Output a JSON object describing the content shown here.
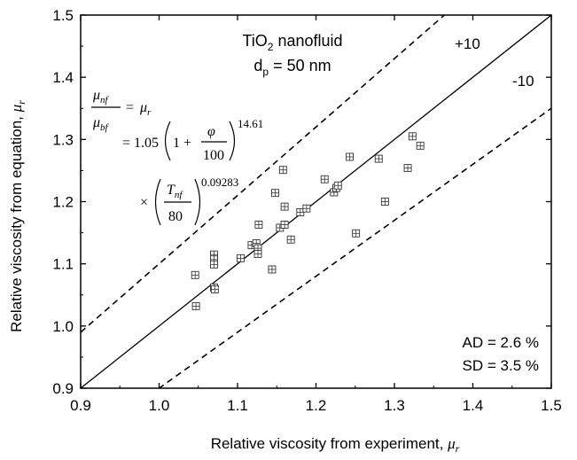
{
  "chart_data": {
    "type": "scatter",
    "xlabel": "Relative viscosity from experiment, ",
    "xlabel_symbol": "μ",
    "xlabel_symbol_sub": "r",
    "ylabel": "Relative viscosity from equation, ",
    "ylabel_symbol": "μ",
    "ylabel_symbol_sub": "r",
    "xlim": [
      0.9,
      1.5
    ],
    "ylim": [
      0.9,
      1.5
    ],
    "xticks": [
      "0.9",
      "1.0",
      "1.1",
      "1.2",
      "1.3",
      "1.4",
      "1.5"
    ],
    "yticks": [
      "0.9",
      "1.0",
      "1.1",
      "1.2",
      "1.3",
      "1.4",
      "1.5"
    ],
    "grid": false,
    "marker": "square-with-cross",
    "points": [
      {
        "x": 1.046,
        "y": 1.082
      },
      {
        "x": 1.047,
        "y": 1.032
      },
      {
        "x": 1.07,
        "y": 1.115
      },
      {
        "x": 1.07,
        "y": 1.107
      },
      {
        "x": 1.07,
        "y": 1.099
      },
      {
        "x": 1.07,
        "y": 1.062
      },
      {
        "x": 1.071,
        "y": 1.059
      },
      {
        "x": 1.104,
        "y": 1.109
      },
      {
        "x": 1.118,
        "y": 1.13
      },
      {
        "x": 1.124,
        "y": 1.133
      },
      {
        "x": 1.126,
        "y": 1.125
      },
      {
        "x": 1.126,
        "y": 1.116
      },
      {
        "x": 1.127,
        "y": 1.163
      },
      {
        "x": 1.144,
        "y": 1.091
      },
      {
        "x": 1.148,
        "y": 1.214
      },
      {
        "x": 1.154,
        "y": 1.158
      },
      {
        "x": 1.158,
        "y": 1.251
      },
      {
        "x": 1.16,
        "y": 1.192
      },
      {
        "x": 1.16,
        "y": 1.163
      },
      {
        "x": 1.168,
        "y": 1.139
      },
      {
        "x": 1.18,
        "y": 1.183
      },
      {
        "x": 1.188,
        "y": 1.189
      },
      {
        "x": 1.211,
        "y": 1.236
      },
      {
        "x": 1.223,
        "y": 1.215
      },
      {
        "x": 1.226,
        "y": 1.222
      },
      {
        "x": 1.228,
        "y": 1.226
      },
      {
        "x": 1.243,
        "y": 1.272
      },
      {
        "x": 1.251,
        "y": 1.149
      },
      {
        "x": 1.28,
        "y": 1.269
      },
      {
        "x": 1.288,
        "y": 1.2
      },
      {
        "x": 1.317,
        "y": 1.254
      },
      {
        "x": 1.323,
        "y": 1.305
      },
      {
        "x": 1.333,
        "y": 1.29
      }
    ],
    "reference_lines": [
      {
        "label": "",
        "slope": 1.0,
        "style": "solid"
      },
      {
        "label": "+10",
        "slope": 1.1,
        "style": "dashed"
      },
      {
        "label": "-10",
        "slope": 0.9,
        "style": "dashed"
      }
    ],
    "annotations": {
      "material_main": "TiO",
      "material_sub": "2",
      "material_rest": " nanofluid",
      "dp_main": "d",
      "dp_sub": "p",
      "dp_rest": " = 50 nm",
      "ad": "AD = 2.6 %",
      "sd": "SD = 3.5 %"
    },
    "equation": {
      "lhs_num": "μ",
      "lhs_num_sub": "nf",
      "lhs_den": "μ",
      "lhs_den_sub": "bf",
      "eq_sign": "=",
      "rhs1": "μ",
      "rhs1_sub": "r",
      "line2_coef": "= 1.05",
      "line2_one_plus": "1 +",
      "line2_frac_num": "φ",
      "line2_frac_den": "100",
      "line2_exp": "14.61",
      "line3_times": "×",
      "line3_num": "T",
      "line3_num_sub": "nf",
      "line3_den": "80",
      "line3_exp": "0.09283"
    }
  }
}
